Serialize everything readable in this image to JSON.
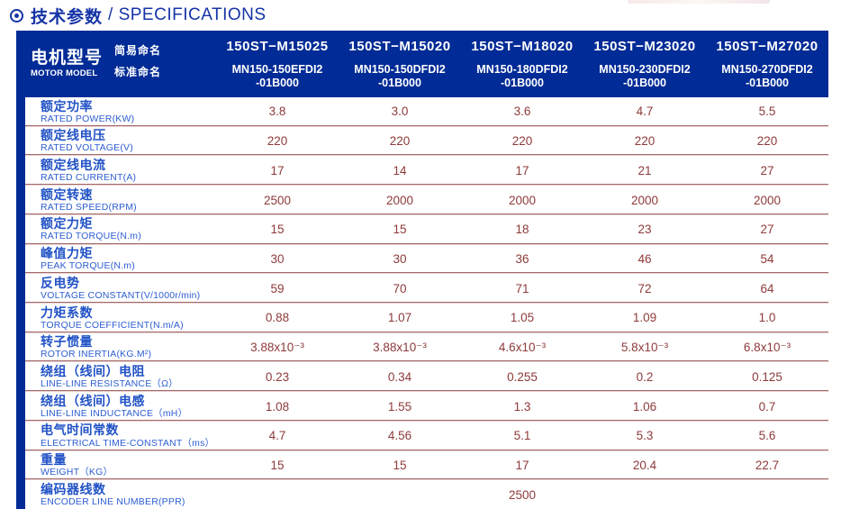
{
  "title": {
    "icon": "circle-dot",
    "zh": "技术参数",
    "en": "/ SPECIFICATIONS"
  },
  "colors": {
    "header_bg": "#012b96",
    "title_blue": "#1534a6",
    "label_blue": "#2152c6",
    "label_blue_light": "#2d5ed2",
    "value_maroon": "#8e3a3a",
    "divider_dark": "#a26868",
    "divider_light": "#e8d2d2"
  },
  "table": {
    "model_header": {
      "zh": "电机型号",
      "en": "MOTOR MODEL",
      "simple_label": "简易命名",
      "standard_label": "标准命名"
    },
    "columns": [
      {
        "simple": "150ST−M15025",
        "standard": "MN150-150EFDI2\n-01B000"
      },
      {
        "simple": "150ST−M15020",
        "standard": "MN150-150DFDI2\n-01B000"
      },
      {
        "simple": "150ST−M18020",
        "standard": "MN150-180DFDI2\n-01B000"
      },
      {
        "simple": "150ST−M23020",
        "standard": "MN150-230DFDI2\n-01B000"
      },
      {
        "simple": "150ST−M27020",
        "standard": "MN150-270DFDI2\n-01B000"
      }
    ],
    "rows": [
      {
        "zh": "额定功率",
        "en": "RATED POWER(KW)",
        "values": [
          "3.8",
          "3.0",
          "3.6",
          "4.7",
          "5.5"
        ]
      },
      {
        "zh": "额定线电压",
        "en": "RATED VOLTAGE(V)",
        "values": [
          "220",
          "220",
          "220",
          "220",
          "220"
        ]
      },
      {
        "zh": "额定线电流",
        "en": "RATED CURRENT(A)",
        "values": [
          "17",
          "14",
          "17",
          "21",
          "27"
        ]
      },
      {
        "zh": "额定转速",
        "en": "RATED SPEED(RPM)",
        "values": [
          "2500",
          "2000",
          "2000",
          "2000",
          "2000"
        ]
      },
      {
        "zh": "额定力矩",
        "en": "RATED TORQUE(N.m)",
        "values": [
          "15",
          "15",
          "18",
          "23",
          "27"
        ]
      },
      {
        "zh": "峰值力矩",
        "en": "PEAK TORQUE(N.m)",
        "values": [
          "30",
          "30",
          "36",
          "46",
          "54"
        ]
      },
      {
        "zh": "反电势",
        "en": "VOLTAGE CONSTANT(V/1000r/min)",
        "values": [
          "59",
          "70",
          "71",
          "72",
          "64"
        ]
      },
      {
        "zh": "力矩系数",
        "en": "TORQUE COEFFICIENT(N.m/A)",
        "values": [
          "0.88",
          "1.07",
          "1.05",
          "1.09",
          "1.0"
        ]
      },
      {
        "zh": "转子惯量",
        "en": "ROTOR INERTIA(KG.M²)",
        "values": [
          "3.88x10⁻³",
          "3.88x10⁻³",
          "4.6x10⁻³",
          "5.8x10⁻³",
          "6.8x10⁻³"
        ]
      },
      {
        "zh": "绕组（线间）电阻",
        "en": "LINE-LINE RESISTANCE（Ω）",
        "values": [
          "0.23",
          "0.34",
          "0.255",
          "0.2",
          "0.125"
        ]
      },
      {
        "zh": "绕组（线间）电感",
        "en": "LINE-LINE INDUCTANCE（mH）",
        "values": [
          "1.08",
          "1.55",
          "1.3",
          "1.06",
          "0.7"
        ]
      },
      {
        "zh": "电气时间常数",
        "en": "ELECTRICAL TIME-CONSTANT（ms）",
        "values": [
          "4.7",
          "4.56",
          "5.1",
          "5.3",
          "5.6"
        ]
      },
      {
        "zh": "重量",
        "en": "WEIGHT（KG）",
        "values": [
          "15",
          "15",
          "17",
          "20.4",
          "22.7"
        ]
      },
      {
        "zh": "编码器线数",
        "en": "ENCODER LINE NUMBER(PPR)",
        "values": [
          "",
          "",
          "2500",
          "",
          ""
        ]
      }
    ]
  }
}
